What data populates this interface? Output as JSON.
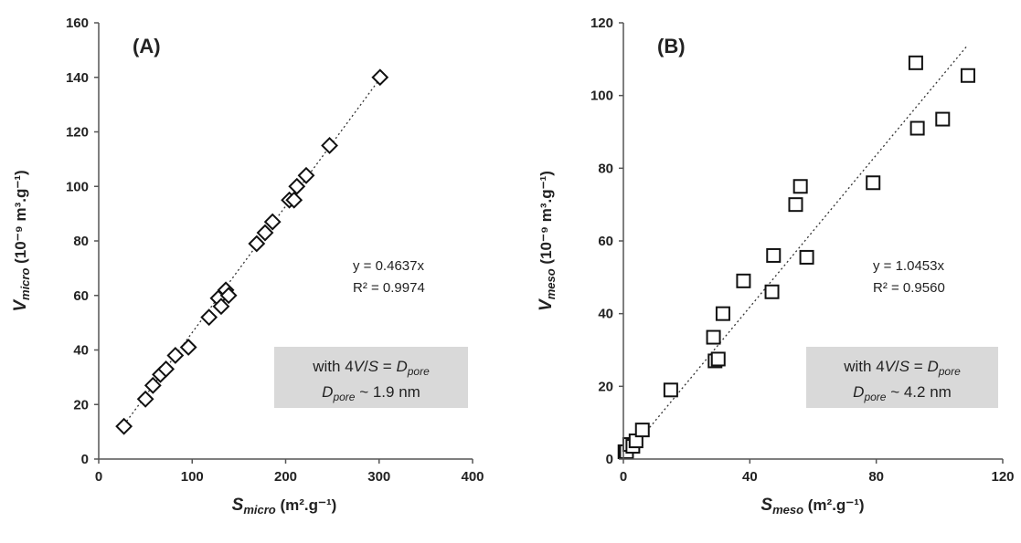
{
  "chart_data": [
    {
      "type": "scatter",
      "panel_label": "(A)",
      "xlabel": {
        "main": "S",
        "sub": "micro",
        "unit": " (m².g⁻¹)"
      },
      "ylabel": {
        "main": "V",
        "sub": "micro",
        "unit": " (10⁻⁹ m³.g⁻¹)"
      },
      "xlim": [
        0,
        400
      ],
      "ylim": [
        0,
        160
      ],
      "xticks": [
        0,
        100,
        200,
        300,
        400
      ],
      "yticks": [
        0,
        20,
        40,
        60,
        80,
        100,
        120,
        140,
        160
      ],
      "marker": "diamond",
      "grid": false,
      "points": [
        {
          "x": 27,
          "y": 12
        },
        {
          "x": 50,
          "y": 22
        },
        {
          "x": 58,
          "y": 27
        },
        {
          "x": 66,
          "y": 31
        },
        {
          "x": 72,
          "y": 33
        },
        {
          "x": 82,
          "y": 38
        },
        {
          "x": 96,
          "y": 41
        },
        {
          "x": 118,
          "y": 52
        },
        {
          "x": 128,
          "y": 59
        },
        {
          "x": 131,
          "y": 56
        },
        {
          "x": 136,
          "y": 62
        },
        {
          "x": 139,
          "y": 60
        },
        {
          "x": 169,
          "y": 79
        },
        {
          "x": 178,
          "y": 83
        },
        {
          "x": 186,
          "y": 87
        },
        {
          "x": 204,
          "y": 95
        },
        {
          "x": 209,
          "y": 95
        },
        {
          "x": 212,
          "y": 100
        },
        {
          "x": 222,
          "y": 104
        },
        {
          "x": 247,
          "y": 115
        },
        {
          "x": 301,
          "y": 140
        }
      ],
      "trendline": {
        "slope": 0.4637,
        "x_range": [
          27,
          301
        ],
        "style": "dotted"
      },
      "equation": "y = 0.4637x",
      "r_squared": "R² = 0.9974",
      "note": {
        "prefix": "with 4",
        "v": "V",
        "slash": "/",
        "s": "S",
        "eq": " = ",
        "d": "D",
        "pore": "pore",
        "line2_suffix": " ~ 1.9 nm"
      }
    },
    {
      "type": "scatter",
      "panel_label": "(B)",
      "xlabel": {
        "main": "S",
        "sub": "meso",
        "unit": " (m².g⁻¹)"
      },
      "ylabel": {
        "main": "V",
        "sub": "meso",
        "unit": " (10⁻⁹ m³.g⁻¹)"
      },
      "xlim": [
        0,
        120
      ],
      "ylim": [
        0,
        120
      ],
      "xticks": [
        0,
        40,
        80,
        120
      ],
      "yticks": [
        0,
        20,
        40,
        60,
        80,
        100,
        120
      ],
      "marker": "square",
      "grid": false,
      "points": [
        {
          "x": 0.5,
          "y": 2
        },
        {
          "x": 1,
          "y": 2
        },
        {
          "x": 2,
          "y": 4
        },
        {
          "x": 3,
          "y": 3.5
        },
        {
          "x": 4,
          "y": 5
        },
        {
          "x": 6,
          "y": 8
        },
        {
          "x": 15,
          "y": 19
        },
        {
          "x": 28.5,
          "y": 33.5
        },
        {
          "x": 29,
          "y": 27
        },
        {
          "x": 30,
          "y": 27.5
        },
        {
          "x": 31.5,
          "y": 40
        },
        {
          "x": 38,
          "y": 49
        },
        {
          "x": 47,
          "y": 46
        },
        {
          "x": 47.5,
          "y": 56
        },
        {
          "x": 54.5,
          "y": 70
        },
        {
          "x": 56,
          "y": 75
        },
        {
          "x": 58,
          "y": 55.5
        },
        {
          "x": 79,
          "y": 76
        },
        {
          "x": 92.5,
          "y": 109
        },
        {
          "x": 93,
          "y": 91
        },
        {
          "x": 101,
          "y": 93.5
        },
        {
          "x": 109,
          "y": 105.5
        }
      ],
      "trendline": {
        "slope": 1.0453,
        "x_range": [
          0,
          109
        ],
        "style": "dotted"
      },
      "equation": "y = 1.0453x",
      "r_squared": "R² = 0.9560",
      "note": {
        "prefix": "with 4",
        "v": "V",
        "slash": "/",
        "s": "S",
        "eq": " = ",
        "d": "D",
        "pore": "pore",
        "line2_suffix": " ~ 4.2 nm"
      }
    }
  ]
}
